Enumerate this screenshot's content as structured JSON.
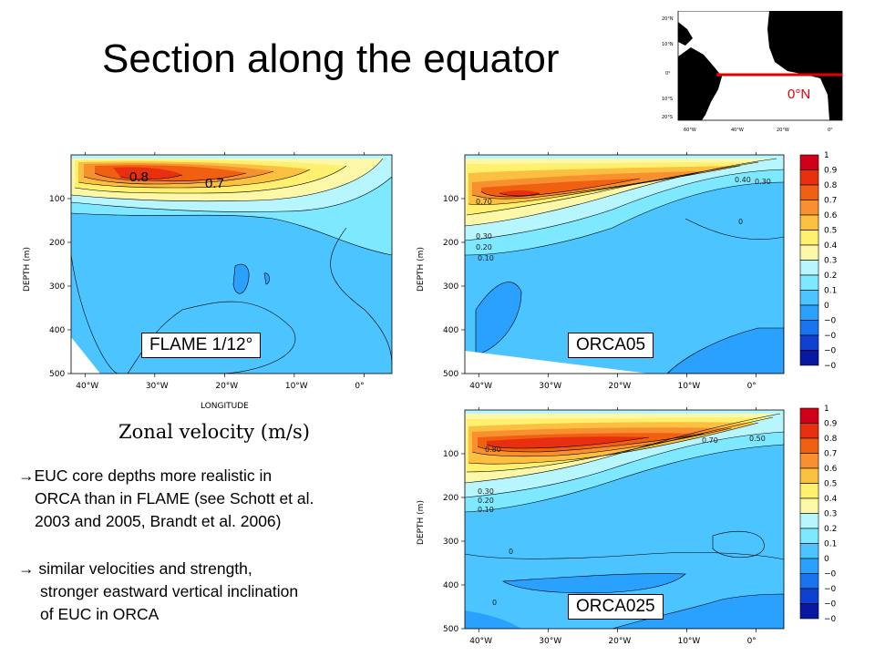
{
  "slide": {
    "title": "Section along the equator",
    "inset_map": {
      "label": "0°N",
      "lat_ticks": [
        "20°N",
        "10°N",
        "0°",
        "10°S",
        "20°S"
      ],
      "lon_ticks": [
        "60°W",
        "40°W",
        "20°W",
        "0°"
      ],
      "line_color": "#e00000"
    },
    "caption": "Zonal velocity (m/s)",
    "bullets": [
      {
        "arrow": "→",
        "lines": [
          "EUC core depths more realistic in",
          "ORCA than in FLAME (see Schott et al.",
          "2003 and 2005, Brandt et al. 2006)"
        ]
      },
      {
        "arrow": "→",
        "lines": [
          " similar velocities and strength,",
          "stronger eastward vertical inclination",
          "of EUC in ORCA"
        ]
      }
    ]
  },
  "chart_data": [
    {
      "type": "contour",
      "label": "FLAME 1/12°",
      "xlabel": "LONGITUDE",
      "ylabel": "DEPTH (m)",
      "x_ticks": [
        "40°W",
        "30°W",
        "20°W",
        "10°W",
        "0°"
      ],
      "x_range": [
        -42,
        4
      ],
      "y_ticks": [
        100,
        200,
        300,
        400,
        500
      ],
      "y_range": [
        0,
        500
      ],
      "contour_labels": [
        "0.8",
        "0.7"
      ],
      "euc_core": {
        "lon": -33,
        "depth": 70,
        "max_velocity": 0.8
      }
    },
    {
      "type": "contour",
      "label": "ORCA05",
      "ylabel": "DEPTH (m)",
      "x_ticks": [
        "40°W",
        "30°W",
        "20°W",
        "10°W",
        "0°"
      ],
      "x_range": [
        -42,
        4
      ],
      "y_ticks": [
        100,
        200,
        300,
        400,
        500
      ],
      "y_range": [
        0,
        500
      ],
      "contour_labels": [
        "0.70",
        "0.40",
        "0.30",
        "0.30",
        "0.20",
        "0.10",
        "0"
      ],
      "euc_core": {
        "lon": -35,
        "depth": 95,
        "max_velocity": 0.7
      }
    },
    {
      "type": "contour",
      "label": "ORCA025",
      "ylabel": "DEPTH (m)",
      "x_ticks": [
        "40°W",
        "30°W",
        "20°W",
        "10°W",
        "0°"
      ],
      "x_range": [
        -42,
        4
      ],
      "y_ticks": [
        100,
        200,
        300,
        400,
        500
      ],
      "y_range": [
        0,
        500
      ],
      "contour_labels": [
        "0.80",
        "0.70",
        "0.50",
        "0.30",
        "0.20",
        "0.10",
        "0",
        "0"
      ],
      "euc_core": {
        "lon": -34,
        "depth": 100,
        "max_velocity": 0.8
      }
    }
  ],
  "colorbar": {
    "labels": [
      "1",
      "0.9",
      "0.8",
      "0.7",
      "0.6",
      "0.5",
      "0.4",
      "0.3",
      "0.2",
      "0.1",
      "0",
      "−0",
      "−0",
      "−0",
      "−0"
    ],
    "colors": [
      "#d00018",
      "#e83010",
      "#f06010",
      "#f89030",
      "#fcc040",
      "#fff070",
      "#fdf7a8",
      "#b8f6ff",
      "#7de8ff",
      "#4cc4ff",
      "#2aa0ff",
      "#1a74f0",
      "#1040d0",
      "#0818a0"
    ]
  }
}
